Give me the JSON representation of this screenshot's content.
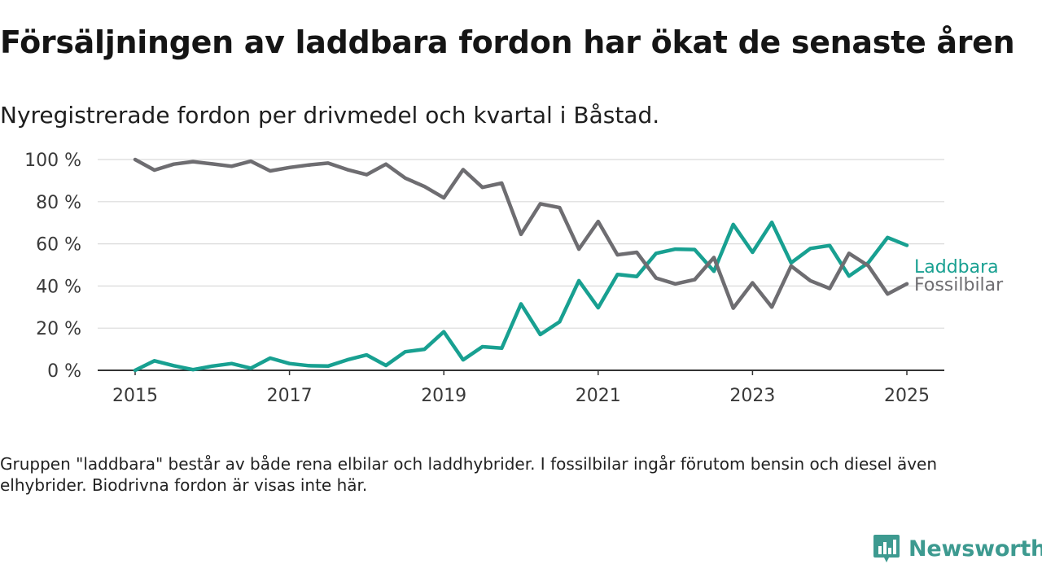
{
  "title": "Försäljningen av laddbara fordon har ökat de senaste åren",
  "subtitle": "Nyregistrerade fordon per drivmedel och kvartal i Båstad.",
  "note": "Gruppen \"laddbara\" består av både rena elbilar och laddhybrider. I fossilbilar ingår förutom bensin och diesel även elhybrider. Biodrivna fordon är visas inte här.",
  "brand": {
    "name": "Newsworthy",
    "icon": "newsworthy-logo-icon",
    "color": "#3d9a90"
  },
  "chart_data": {
    "type": "line",
    "x_start": "2015 Q1",
    "x_tick_labels": [
      "2015",
      "2017",
      "2019",
      "2021",
      "2023",
      "2025"
    ],
    "y_tick_labels": [
      "0 %",
      "20 %",
      "40 %",
      "60 %",
      "80 %",
      "100 %"
    ],
    "ylim": [
      0,
      100
    ],
    "grid": true,
    "series": [
      {
        "name": "Laddbara",
        "color": "#18a091",
        "values": [
          0,
          4.5,
          2.2,
          0.3,
          2.0,
          3.2,
          1.0,
          5.8,
          3.2,
          2.2,
          2.0,
          5.0,
          7.3,
          2.3,
          8.8,
          10.0,
          18.3,
          5.0,
          11.2,
          10.5,
          31.5,
          17.0,
          23.0,
          42.5,
          29.7,
          45.5,
          44.5,
          55.5,
          57.5,
          57.3,
          47.0,
          69.2,
          56.0,
          70.2,
          51.0,
          57.8,
          59.2,
          44.7,
          51.0,
          63.0,
          59.3
        ]
      },
      {
        "name": "Fossilbilar",
        "color": "#6e6d71",
        "values": [
          100,
          95.0,
          97.8,
          99.0,
          97.9,
          96.8,
          99.2,
          94.6,
          96.2,
          97.4,
          98.3,
          95.2,
          92.8,
          97.8,
          91.2,
          87.2,
          81.8,
          95.2,
          86.8,
          88.8,
          64.5,
          79.0,
          77.2,
          57.5,
          70.6,
          54.8,
          56.0,
          43.8,
          41.0,
          43.0,
          53.5,
          29.5,
          41.5,
          30.0,
          49.5,
          42.5,
          38.8,
          55.5,
          49.6,
          36.2,
          41.0
        ]
      }
    ]
  }
}
